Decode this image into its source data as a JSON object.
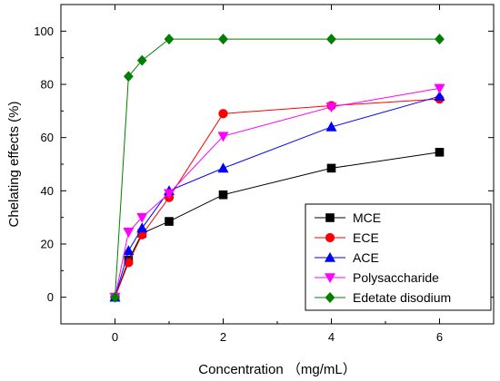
{
  "chart_data": {
    "type": "line",
    "xlabel": "Concentration （mg/mL）",
    "ylabel": "Chelating effects (%)",
    "xlim": [
      -1,
      7
    ],
    "ylim": [
      -10,
      110
    ],
    "x_ticks": [
      0,
      2,
      4,
      6
    ],
    "y_ticks": [
      0,
      20,
      40,
      60,
      80,
      100
    ],
    "grid": false,
    "legend_position": "bottom-right",
    "series": [
      {
        "name": "MCE",
        "color": "#000000",
        "marker": "square",
        "x": [
          0,
          0.25,
          0.5,
          1,
          2,
          4,
          6
        ],
        "y": [
          0,
          14,
          24,
          28.5,
          38.5,
          48.5,
          54.5
        ]
      },
      {
        "name": "ECE",
        "color": "#ff0000",
        "marker": "circle",
        "x": [
          0,
          0.25,
          0.5,
          1,
          2,
          4,
          6
        ],
        "y": [
          0,
          13,
          23.5,
          37.5,
          69,
          72,
          74.5
        ]
      },
      {
        "name": "ACE",
        "color": "#0000ff",
        "marker": "triangle-up",
        "x": [
          0,
          0.25,
          0.5,
          1,
          2,
          4,
          6
        ],
        "y": [
          0,
          17.5,
          26,
          40,
          48.5,
          64,
          75.5
        ]
      },
      {
        "name": "Polysaccharide",
        "color": "#ff00ff",
        "marker": "triangle-down",
        "x": [
          0,
          0.25,
          0.5,
          1,
          2,
          4,
          6
        ],
        "y": [
          0,
          24.5,
          30,
          39,
          60.5,
          71.5,
          78.5
        ]
      },
      {
        "name": "Edetate disodium",
        "color": "#008000",
        "marker": "diamond",
        "x": [
          0,
          0.25,
          0.5,
          1,
          2,
          4,
          6
        ],
        "y": [
          0,
          83,
          89,
          97,
          97,
          97,
          97
        ]
      }
    ]
  }
}
